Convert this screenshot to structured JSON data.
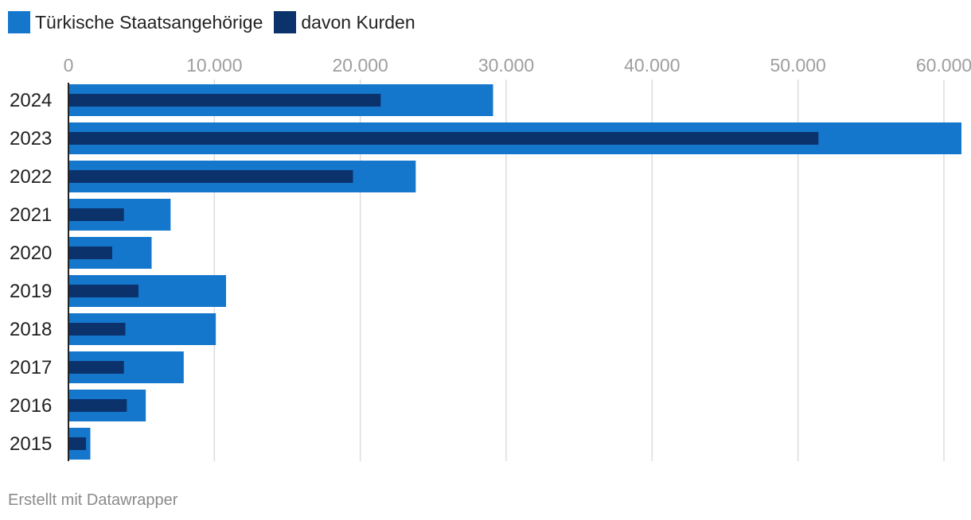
{
  "colors": {
    "series_total": "#1477cc",
    "series_kurds": "#0c326c",
    "grid": "#dddddd",
    "tick_label": "#9e9e9e",
    "category_label": "#222222",
    "axis": "#222222"
  },
  "chart_data": {
    "type": "bar",
    "orientation": "horizontal",
    "title": "",
    "xlabel": "",
    "ylabel": "",
    "categories": [
      "2024",
      "2023",
      "2022",
      "2021",
      "2020",
      "2019",
      "2018",
      "2017",
      "2016",
      "2015"
    ],
    "series": [
      {
        "name": "Türkische Staatsangehörige",
        "values": [
          29100,
          61200,
          23800,
          7000,
          5700,
          10800,
          10100,
          7900,
          5300,
          1500
        ]
      },
      {
        "name": "davon Kurden",
        "values": [
          21400,
          51400,
          19500,
          3800,
          3000,
          4800,
          3900,
          3800,
          4000,
          1200
        ]
      }
    ],
    "xlim": [
      0,
      61200
    ],
    "xticks": [
      0,
      10000,
      20000,
      30000,
      40000,
      50000,
      60000
    ],
    "xtick_labels": [
      "0",
      "10.000",
      "20.000",
      "30.000",
      "40.000",
      "50.000",
      "60.000"
    ],
    "grid": true,
    "legend_position": "top-left"
  },
  "legend": {
    "items": [
      {
        "label": "Türkische Staatsangehörige"
      },
      {
        "label": "davon Kurden"
      }
    ]
  },
  "footer": {
    "credit": "Erstellt mit Datawrapper"
  }
}
